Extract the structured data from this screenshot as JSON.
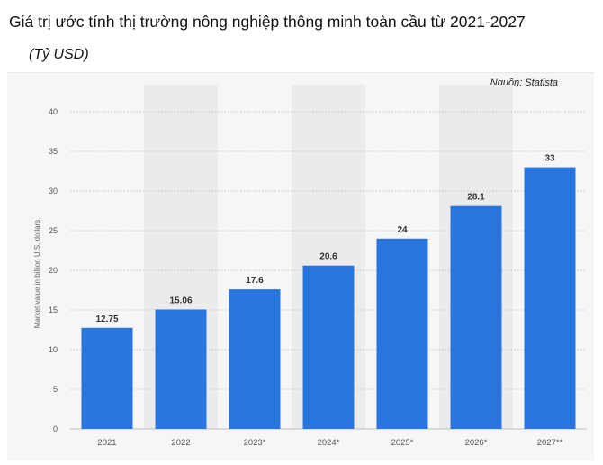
{
  "header": {
    "title": "Giá trị ước tính thị trường nông nghiệp thông minh toàn cầu từ 2021-2027",
    "subtitle": "(Tỷ USD)"
  },
  "source": "Nguồn: Statista",
  "colors": {
    "bar": "#2876dd",
    "band": "#ebebeb",
    "panel": "#f6f6f6"
  },
  "chart_data": {
    "type": "bar",
    "categories": [
      "2021",
      "2022",
      "2023*",
      "2024*",
      "2025*",
      "2026*",
      "2027**"
    ],
    "values": [
      12.75,
      15.06,
      17.6,
      20.6,
      24,
      28.1,
      33
    ],
    "value_labels": [
      "12.75",
      "15.06",
      "17.6",
      "20.6",
      "24",
      "28.1",
      "33"
    ],
    "ylabel": "Market value in billion U.S. dollars",
    "ylim": [
      0,
      40
    ],
    "yticks": [
      0,
      5,
      10,
      15,
      20,
      25,
      30,
      35,
      40
    ],
    "grid": true,
    "legend": "none"
  }
}
